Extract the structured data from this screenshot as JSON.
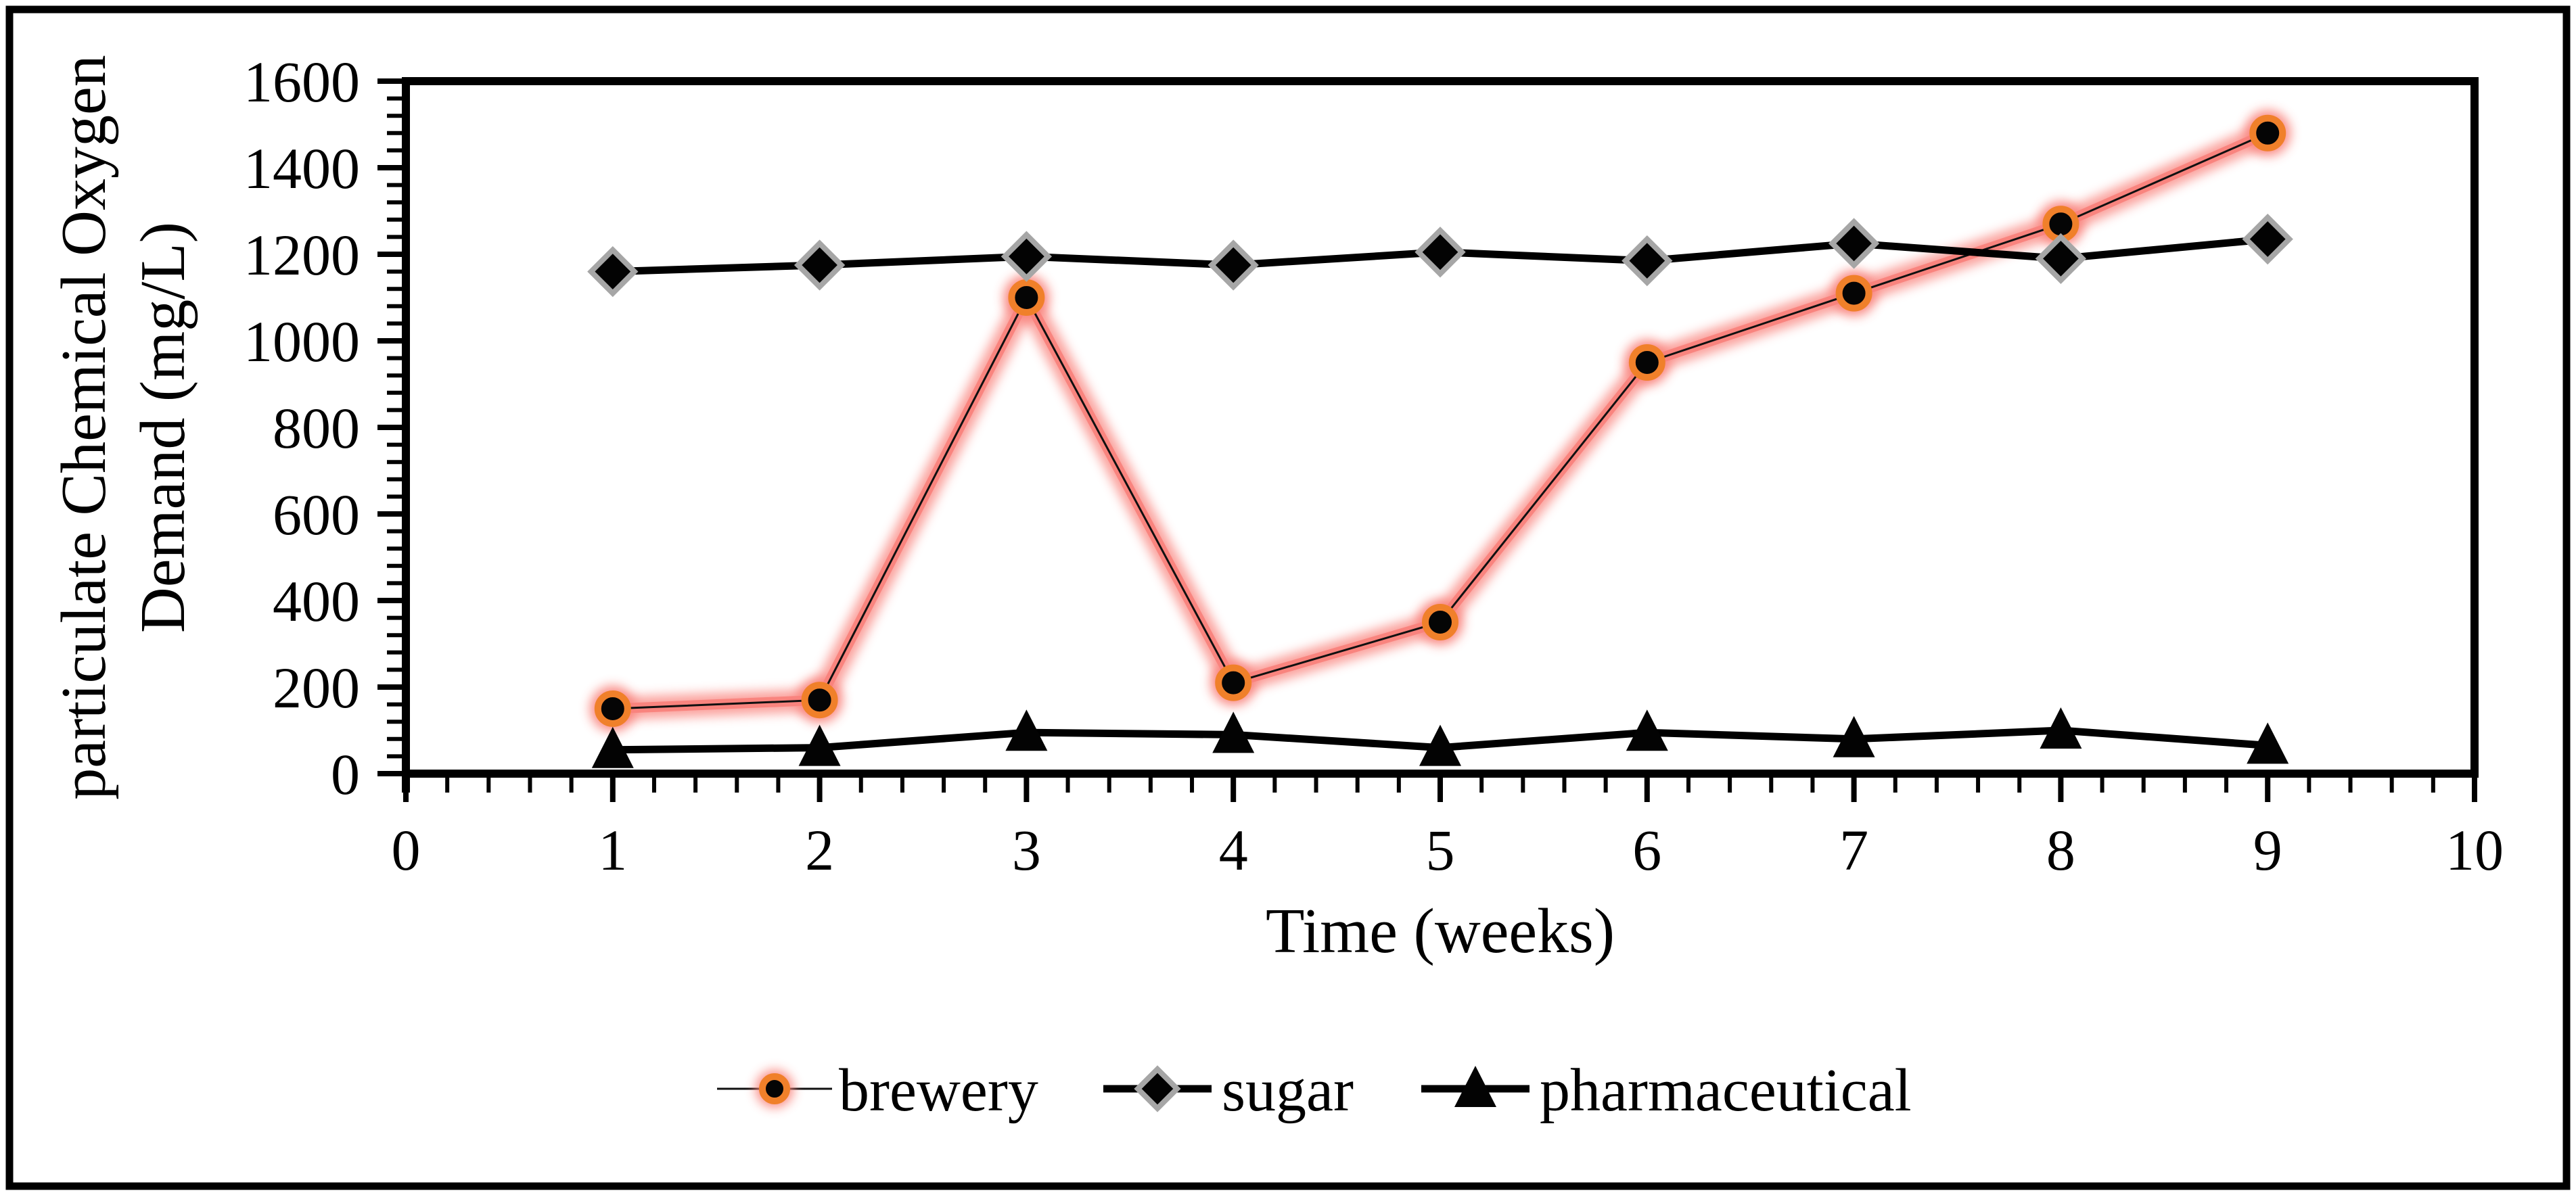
{
  "figure": {
    "background": "#FFFFFF",
    "border_color": "#000000"
  },
  "chart_data": {
    "type": "line",
    "title": "",
    "xlabel": "Time (weeks)",
    "ylabel": "particulate Chemical Oxygen Demand (mg/L)",
    "ylabel_lines": [
      "particulate Chemical Oxygen",
      "Demand (mg/L)"
    ],
    "xlim": [
      0,
      10
    ],
    "ylim": [
      0,
      1600
    ],
    "x_ticks": [
      0,
      1,
      2,
      3,
      4,
      5,
      6,
      7,
      8,
      9,
      10
    ],
    "y_ticks": [
      0,
      200,
      400,
      600,
      800,
      1000,
      1200,
      1400,
      1600
    ],
    "x_minor_step": 0.2,
    "y_minor_step": 40,
    "grid": false,
    "legend_position": "bottom-center",
    "x": [
      1,
      2,
      3,
      4,
      5,
      6,
      7,
      8,
      9
    ],
    "series": [
      {
        "name": "brewery",
        "marker": "circle",
        "line_color": "#101010",
        "marker_fill": "#050505",
        "marker_ring": "#F0802A",
        "glow_color": "#F9827C",
        "values": [
          150,
          170,
          1100,
          210,
          350,
          950,
          1110,
          1270,
          1480
        ]
      },
      {
        "name": "sugar",
        "marker": "diamond",
        "line_color": "#000000",
        "marker_fill": "#030303",
        "marker_ring": "#A6A6A6",
        "values": [
          1160,
          1175,
          1195,
          1175,
          1205,
          1185,
          1225,
          1190,
          1235
        ]
      },
      {
        "name": "pharmaceutical",
        "marker": "triangle",
        "line_color": "#000000",
        "marker_fill": "#030303",
        "values": [
          55,
          60,
          95,
          90,
          60,
          95,
          80,
          100,
          65
        ]
      }
    ]
  }
}
